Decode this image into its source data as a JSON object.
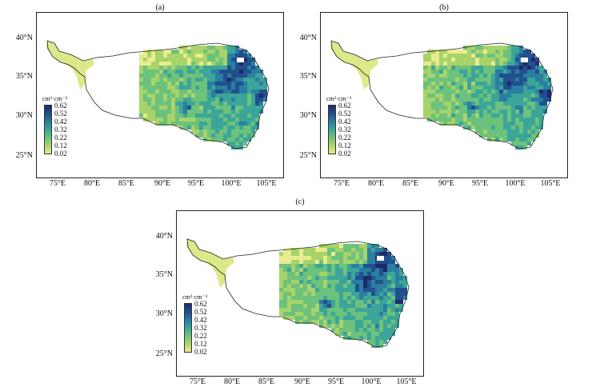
{
  "panels": [
    {
      "label": "(a)"
    },
    {
      "label": "(b)"
    },
    {
      "label": "(c)"
    }
  ],
  "y_ticks": [
    "40°N",
    "35°N",
    "30°N",
    "25°N"
  ],
  "x_ticks": [
    "75°E",
    "80°E",
    "85°E",
    "90°E",
    "95°E",
    "100°E",
    "105°E"
  ],
  "colorbar": {
    "title": "cm³·cm⁻³",
    "ticks": [
      "0.62",
      "0.52",
      "0.42",
      "0.32",
      "0.22",
      "0.12",
      "0.02"
    ],
    "colors": [
      "#1f2a6b",
      "#22508e",
      "#2a7fa0",
      "#3ca59a",
      "#6cc27c",
      "#a8d36a",
      "#e8ec8e"
    ]
  }
}
